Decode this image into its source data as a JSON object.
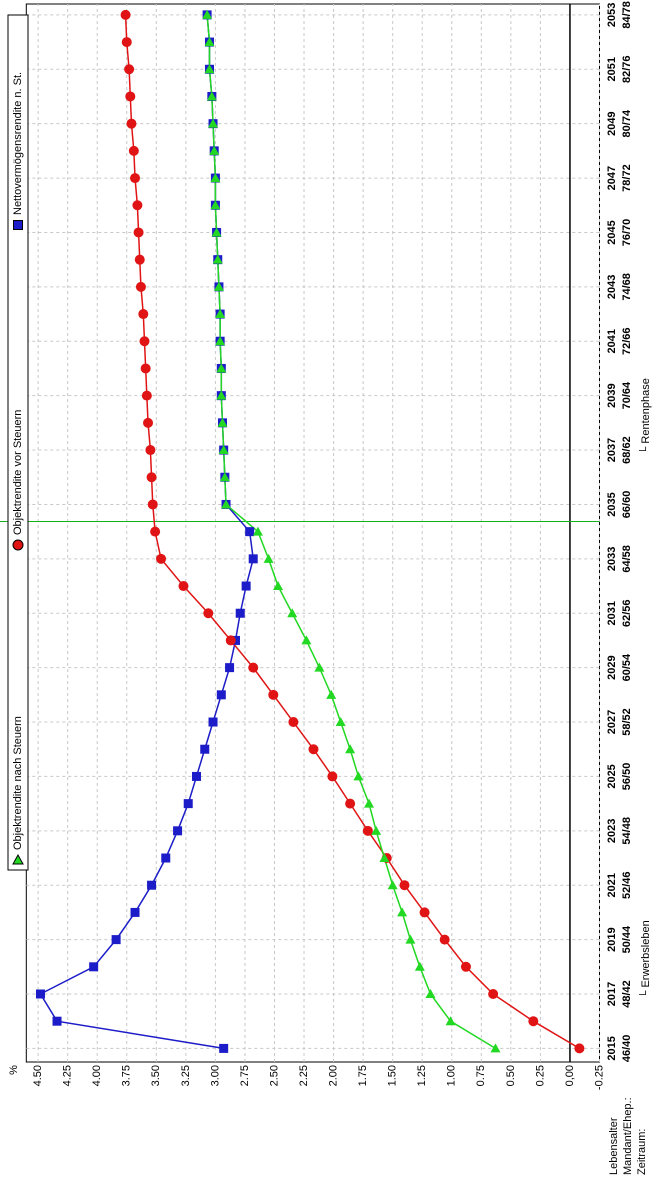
{
  "chart_data": {
    "type": "line",
    "y_unit": "%",
    "row_labels": [
      "Lebensalter",
      "Mandant/Ehep.:",
      "Zeitraum:"
    ],
    "x": [
      2015,
      2016,
      2017,
      2018,
      2019,
      2020,
      2021,
      2022,
      2023,
      2024,
      2025,
      2026,
      2027,
      2028,
      2029,
      2030,
      2031,
      2032,
      2033,
      2034,
      2035,
      2036,
      2037,
      2038,
      2039,
      2040,
      2041,
      2042,
      2043,
      2044,
      2045,
      2046,
      2047,
      2048,
      2049,
      2050,
      2051,
      2052,
      2053
    ],
    "xlim": [
      2014.5,
      2053.4
    ],
    "xticks": [
      2015,
      2017,
      2019,
      2021,
      2023,
      2025,
      2027,
      2029,
      2031,
      2033,
      2035,
      2037,
      2039,
      2041,
      2043,
      2045,
      2047,
      2049,
      2051,
      2053
    ],
    "age_labels": [
      "46/40",
      "48/42",
      "50/44",
      "52/46",
      "54/48",
      "56/50",
      "58/52",
      "60/54",
      "62/56",
      "64/58",
      "66/60",
      "68/62",
      "70/64",
      "72/66",
      "74/68",
      "76/70",
      "78/72",
      "80/74",
      "82/76",
      "84/78"
    ],
    "phases": [
      {
        "label": "└ Erwerbsleben",
        "color": "#a01818",
        "start": 2015
      },
      {
        "label": "└ Rentenphase",
        "color": "#18a018",
        "start": 2035
      }
    ],
    "ylim": [
      -0.25,
      4.6
    ],
    "yticks": [
      {
        "value": 4.5,
        "label": "4.50"
      },
      {
        "value": 4.25,
        "label": "4.25"
      },
      {
        "value": 4,
        "label": "4.00"
      },
      {
        "value": 3.75,
        "label": "3.75"
      },
      {
        "value": 3.5,
        "label": "3.50"
      },
      {
        "value": 3.25,
        "label": "3.25"
      },
      {
        "value": 3,
        "label": "3.00"
      },
      {
        "value": 2.75,
        "label": "2.75"
      },
      {
        "value": 2.5,
        "label": "2.50"
      },
      {
        "value": 2.25,
        "label": "2.25"
      },
      {
        "value": 2,
        "label": "2.00"
      },
      {
        "value": 1.75,
        "label": "1.75"
      },
      {
        "value": 1.5,
        "label": "1.50"
      },
      {
        "value": 1.25,
        "label": "1.25"
      },
      {
        "value": 1,
        "label": "1.00"
      },
      {
        "value": 0.75,
        "label": "0.75"
      },
      {
        "value": 0.5,
        "label": "0.50"
      },
      {
        "value": 0.25,
        "label": "0.25"
      },
      {
        "value": 0,
        "label": "0,00"
      },
      {
        "value": -0.25,
        "label": "-0.25"
      }
    ],
    "grid": true,
    "series": [
      {
        "name": "Objektrendite nach Steuern",
        "color": "#22d822",
        "marker": "triangle",
        "values": [
          0.63,
          1.01,
          1.18,
          1.27,
          1.35,
          1.42,
          1.5,
          1.57,
          1.64,
          1.7,
          1.79,
          1.86,
          1.94,
          2.02,
          2.12,
          2.23,
          2.35,
          2.47,
          2.55,
          2.64,
          2.91,
          2.92,
          2.93,
          2.94,
          2.95,
          2.95,
          2.96,
          2.96,
          2.97,
          2.98,
          2.99,
          3.0,
          3.0,
          3.01,
          3.02,
          3.03,
          3.05,
          3.05,
          3.07
        ]
      },
      {
        "name": "Objektrendite vor Steuern",
        "color": "#e01414",
        "marker": "circle",
        "values": [
          -0.08,
          0.31,
          0.65,
          0.88,
          1.06,
          1.23,
          1.4,
          1.55,
          1.71,
          1.86,
          2.01,
          2.17,
          2.34,
          2.51,
          2.68,
          2.87,
          3.06,
          3.27,
          3.46,
          3.51,
          3.53,
          3.54,
          3.55,
          3.57,
          3.58,
          3.59,
          3.6,
          3.61,
          3.63,
          3.64,
          3.65,
          3.66,
          3.68,
          3.69,
          3.71,
          3.72,
          3.73,
          3.75,
          3.76
        ]
      },
      {
        "name": "Nettovermögensrendite n. St.",
        "color": "#1c1cc8",
        "marker": "square",
        "values": [
          2.93,
          4.34,
          4.48,
          4.03,
          3.84,
          3.68,
          3.54,
          3.42,
          3.32,
          3.23,
          3.16,
          3.09,
          3.02,
          2.95,
          2.88,
          2.83,
          2.79,
          2.74,
          2.68,
          2.71,
          2.91,
          2.92,
          2.93,
          2.94,
          2.95,
          2.95,
          2.96,
          2.96,
          2.97,
          2.98,
          2.99,
          3.0,
          3.0,
          3.01,
          3.02,
          3.03,
          3.05,
          3.05,
          3.07
        ]
      }
    ]
  }
}
